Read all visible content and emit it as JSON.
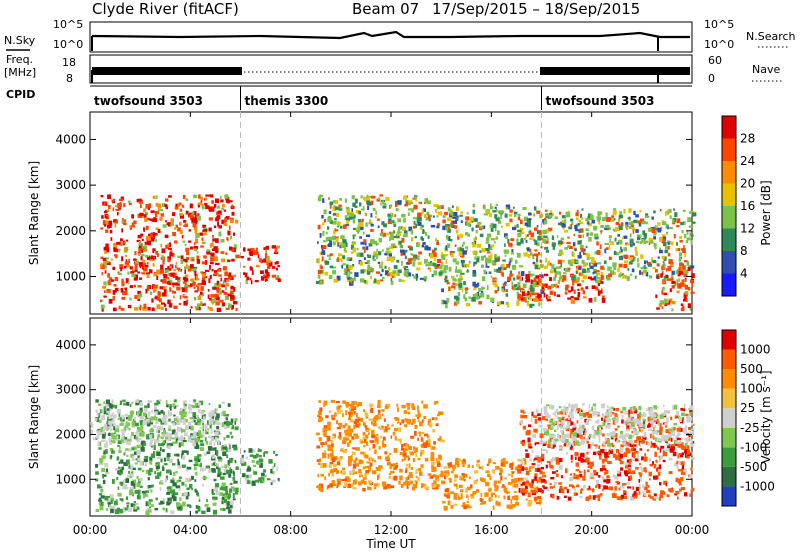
{
  "header": {
    "title": "Clyde River (fitACF)",
    "beam": "Beam 07",
    "date_range": "17/Sep/2015 – 18/Sep/2015"
  },
  "nsky_panel": {
    "left_label": "N.Sky",
    "left_ticks": [
      "10^5",
      "10^0"
    ],
    "right_ticks": [
      "10^5",
      "10^0"
    ],
    "right_label": "N.Search",
    "right_legend_line": "dotted"
  },
  "freq_panel": {
    "left_label_1": "Freq.",
    "left_label_2": "[MHz]",
    "left_ticks": [
      "18",
      "8"
    ],
    "right_ticks": [
      "60",
      "0"
    ],
    "right_label": "Nave",
    "right_legend_line": "dotted"
  },
  "cpid": {
    "label": "CPID",
    "programs": [
      {
        "name": "twofsound 3503",
        "start_hour": 0
      },
      {
        "name": "themis 3300",
        "start_hour": 6
      },
      {
        "name": "twofsound 3503",
        "start_hour": 18
      }
    ],
    "boundaries_hours": [
      6,
      18
    ]
  },
  "chart_data": [
    {
      "type": "heatmap",
      "panel": "power",
      "ylabel": "Slant Range [km]",
      "yticks": [
        1000,
        2000,
        3000,
        4000
      ],
      "ylim": [
        180,
        4600
      ],
      "xlim": [
        0,
        24
      ],
      "colorbar_label": "Power [dB]",
      "colorbar_ticks": [
        4,
        8,
        12,
        16,
        20,
        24,
        28
      ],
      "colorbar_colors": [
        "#1a1aff",
        "#2f4fb0",
        "#2e8b57",
        "#7cc24a",
        "#e6c200",
        "#ff8c00",
        "#ff4500",
        "#e00000"
      ],
      "colorbar_range": [
        0,
        32
      ],
      "regions": [
        {
          "x": [
            0.4,
            5.8
          ],
          "y": [
            300,
            2800
          ],
          "level": "high"
        },
        {
          "x": [
            6.0,
            7.5
          ],
          "y": [
            900,
            1700
          ],
          "level": "high"
        },
        {
          "x": [
            9.0,
            14.0
          ],
          "y": [
            900,
            2800
          ],
          "level": "medium"
        },
        {
          "x": [
            14.0,
            18.0
          ],
          "y": [
            400,
            2600
          ],
          "level": "medium"
        },
        {
          "x": [
            17.0,
            20.5
          ],
          "y": [
            500,
            1100
          ],
          "level": "high"
        },
        {
          "x": [
            18.0,
            24.0
          ],
          "y": [
            1000,
            2500
          ],
          "level": "medium"
        },
        {
          "x": [
            22.5,
            24.0
          ],
          "y": [
            300,
            1300
          ],
          "level": "high"
        }
      ]
    },
    {
      "type": "heatmap",
      "panel": "velocity",
      "ylabel": "Slant Range [km]",
      "yticks": [
        1000,
        2000,
        3000,
        4000
      ],
      "ylim": [
        180,
        4600
      ],
      "xlim": [
        0,
        24
      ],
      "xlabel": "Time UT",
      "xticks": [
        "00:00",
        "04:00",
        "08:00",
        "12:00",
        "16:00",
        "20:00",
        "00:00"
      ],
      "colorbar_label": "Velocity [m s⁻¹]",
      "colorbar_ticks": [
        "1000",
        "500",
        "100",
        "25",
        "-25",
        "-100",
        "-500",
        "-1000"
      ],
      "colorbar_colors": [
        "#2040c0",
        "#2e6f40",
        "#3c9b3c",
        "#7ec850",
        "#cfcfcf",
        "#f4c040",
        "#ff8c00",
        "#ff5a00",
        "#e00000"
      ],
      "regions": [
        {
          "x": [
            0.2,
            5.8
          ],
          "y": [
            300,
            2800
          ],
          "level": "green"
        },
        {
          "x": [
            0.0,
            5.0
          ],
          "y": [
            1800,
            2600
          ],
          "level": "grey"
        },
        {
          "x": [
            6.0,
            7.5
          ],
          "y": [
            900,
            1700
          ],
          "level": "green"
        },
        {
          "x": [
            9.0,
            14.0
          ],
          "y": [
            800,
            2800
          ],
          "level": "orange"
        },
        {
          "x": [
            14.0,
            18.0
          ],
          "y": [
            400,
            1500
          ],
          "level": "orange"
        },
        {
          "x": [
            17.0,
            24.0
          ],
          "y": [
            600,
            2600
          ],
          "level": "red"
        },
        {
          "x": [
            18.0,
            24.0
          ],
          "y": [
            1800,
            2700
          ],
          "level": "grey"
        }
      ]
    }
  ]
}
